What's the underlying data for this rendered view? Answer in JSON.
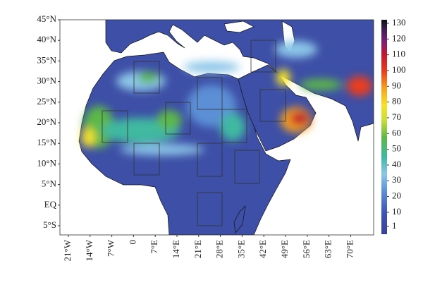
{
  "latitude_labels": [
    "45°N",
    "40°N",
    "35°N",
    "30°N",
    "25°N",
    "20°N",
    "15°N",
    "10°N",
    "5°N",
    "EQ",
    "5°S"
  ],
  "longitude_labels": [
    "21°W",
    "14°W",
    "7°W",
    "0",
    "7°E",
    "14°E",
    "21°E",
    "28°E",
    "35°E",
    "42°E",
    "49°E",
    "56°E",
    "63°E",
    "70°E"
  ],
  "colorbar": {
    "ticks": [
      1,
      10,
      20,
      30,
      40,
      50,
      60,
      70,
      80,
      90,
      100,
      110,
      120,
      130
    ]
  }
}
